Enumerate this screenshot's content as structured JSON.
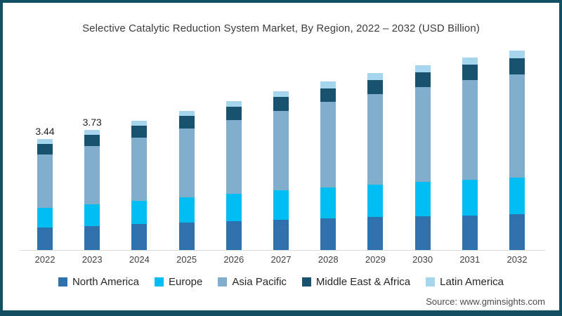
{
  "page": {
    "border_color": "#134f63",
    "background": "#ffffff"
  },
  "chart_data": {
    "type": "bar",
    "stacked": true,
    "title": "Selective Catalytic Reduction System Market, By Region, 2022 – 2032 (USD Billion)",
    "unit": "USD Billion",
    "categories": [
      "2022",
      "2023",
      "2024",
      "2025",
      "2026",
      "2027",
      "2028",
      "2029",
      "2030",
      "2031",
      "2032"
    ],
    "series": [
      {
        "name": "North America",
        "color": "#2e71ad",
        "values": [
          0.7,
          0.75,
          0.8,
          0.85,
          0.9,
          0.94,
          0.98,
          1.02,
          1.05,
          1.08,
          1.11
        ]
      },
      {
        "name": "Europe",
        "color": "#00bdf2",
        "values": [
          0.62,
          0.67,
          0.73,
          0.79,
          0.85,
          0.91,
          0.97,
          1.02,
          1.06,
          1.1,
          1.14
        ]
      },
      {
        "name": "Asia Pacific",
        "color": "#82aecd",
        "values": [
          1.66,
          1.81,
          1.96,
          2.13,
          2.3,
          2.48,
          2.65,
          2.81,
          2.96,
          3.1,
          3.21
        ]
      },
      {
        "name": "Middle East & Africa",
        "color": "#17536e",
        "values": [
          0.32,
          0.35,
          0.38,
          0.39,
          0.41,
          0.42,
          0.43,
          0.44,
          0.46,
          0.48,
          0.51
        ]
      },
      {
        "name": "Latin America",
        "color": "#a6d5ee",
        "values": [
          0.14,
          0.15,
          0.16,
          0.17,
          0.18,
          0.19,
          0.2,
          0.21,
          0.22,
          0.22,
          0.23
        ]
      }
    ],
    "totals": [
      3.44,
      3.73,
      4.03,
      4.33,
      4.64,
      4.94,
      5.23,
      5.5,
      5.75,
      5.98,
      6.2
    ],
    "data_labels": [
      "3.44",
      "3.73",
      "",
      "",
      "",
      "",
      "",
      "",
      "",
      "",
      ""
    ],
    "legend_position": "bottom",
    "y_axis_visible": false,
    "gridlines": false
  },
  "footer": {
    "source": "Source: www.gminsights.com"
  }
}
